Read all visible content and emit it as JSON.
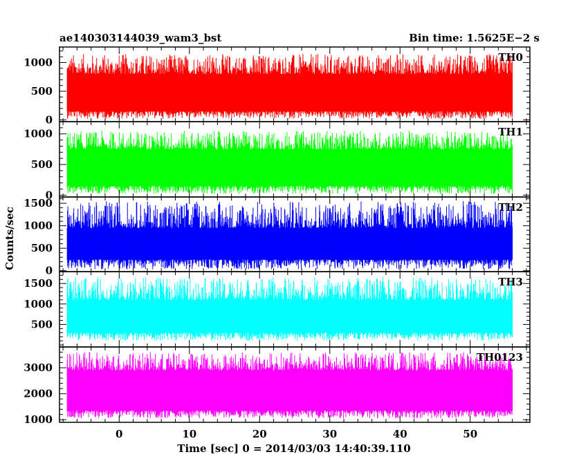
{
  "header": {
    "title": "ae140303144039_wam3_bst",
    "bin_time": "Bin time: 1.5625E−2 s"
  },
  "chart_data": {
    "type": "line",
    "xlabel": "Time [sec] 0 = 2014/03/03 14:40:39.110",
    "ylabel": "Counts/sec",
    "xlim": [
      -8.5,
      58.5
    ],
    "x_range": [
      -7.4,
      56.0
    ],
    "x_ticks": [
      "0",
      "10",
      "20",
      "30",
      "40",
      "50"
    ],
    "x_tick_values": [
      0,
      10,
      20,
      30,
      40,
      50
    ],
    "grid": false,
    "panels": [
      {
        "name": "TH0",
        "color": "#ff0000",
        "ylim": [
          -30,
          1270
        ],
        "y_ticks": [
          0,
          500,
          1000
        ],
        "y_tick_labels": [
          "0",
          "500",
          "1000"
        ],
        "typical_low": 150,
        "typical_high": 800,
        "min_approx": 20,
        "max_approx": 1150
      },
      {
        "name": "TH1",
        "color": "#00ff00",
        "ylim": [
          -30,
          1200
        ],
        "y_ticks": [
          0,
          500,
          1000
        ],
        "y_tick_labels": [
          "0",
          "500",
          "1000"
        ],
        "typical_low": 150,
        "typical_high": 750,
        "min_approx": 20,
        "max_approx": 1050
      },
      {
        "name": "TH2",
        "color": "#0000ff",
        "ylim": [
          -20,
          1640
        ],
        "y_ticks": [
          0,
          500,
          1000,
          1500
        ],
        "y_tick_labels": [
          "0",
          "500",
          "1000",
          "1500"
        ],
        "typical_low": 250,
        "typical_high": 950,
        "min_approx": 30,
        "max_approx": 1550
      },
      {
        "name": "TH3",
        "color": "#00ffff",
        "ylim": [
          -50,
          1790
        ],
        "y_ticks": [
          500,
          1000,
          1500
        ],
        "y_tick_labels": [
          "500",
          "1000",
          "1500"
        ],
        "typical_low": 300,
        "typical_high": 1100,
        "min_approx": 100,
        "max_approx": 1650
      },
      {
        "name": "TH0123",
        "color": "#ff00ff",
        "ylim": [
          900,
          3800
        ],
        "y_ticks": [
          1000,
          2000,
          3000
        ],
        "y_tick_labels": [
          "1000",
          "2000",
          "3000"
        ],
        "typical_low": 1350,
        "typical_high": 2900,
        "min_approx": 1050,
        "max_approx": 3600
      }
    ]
  }
}
